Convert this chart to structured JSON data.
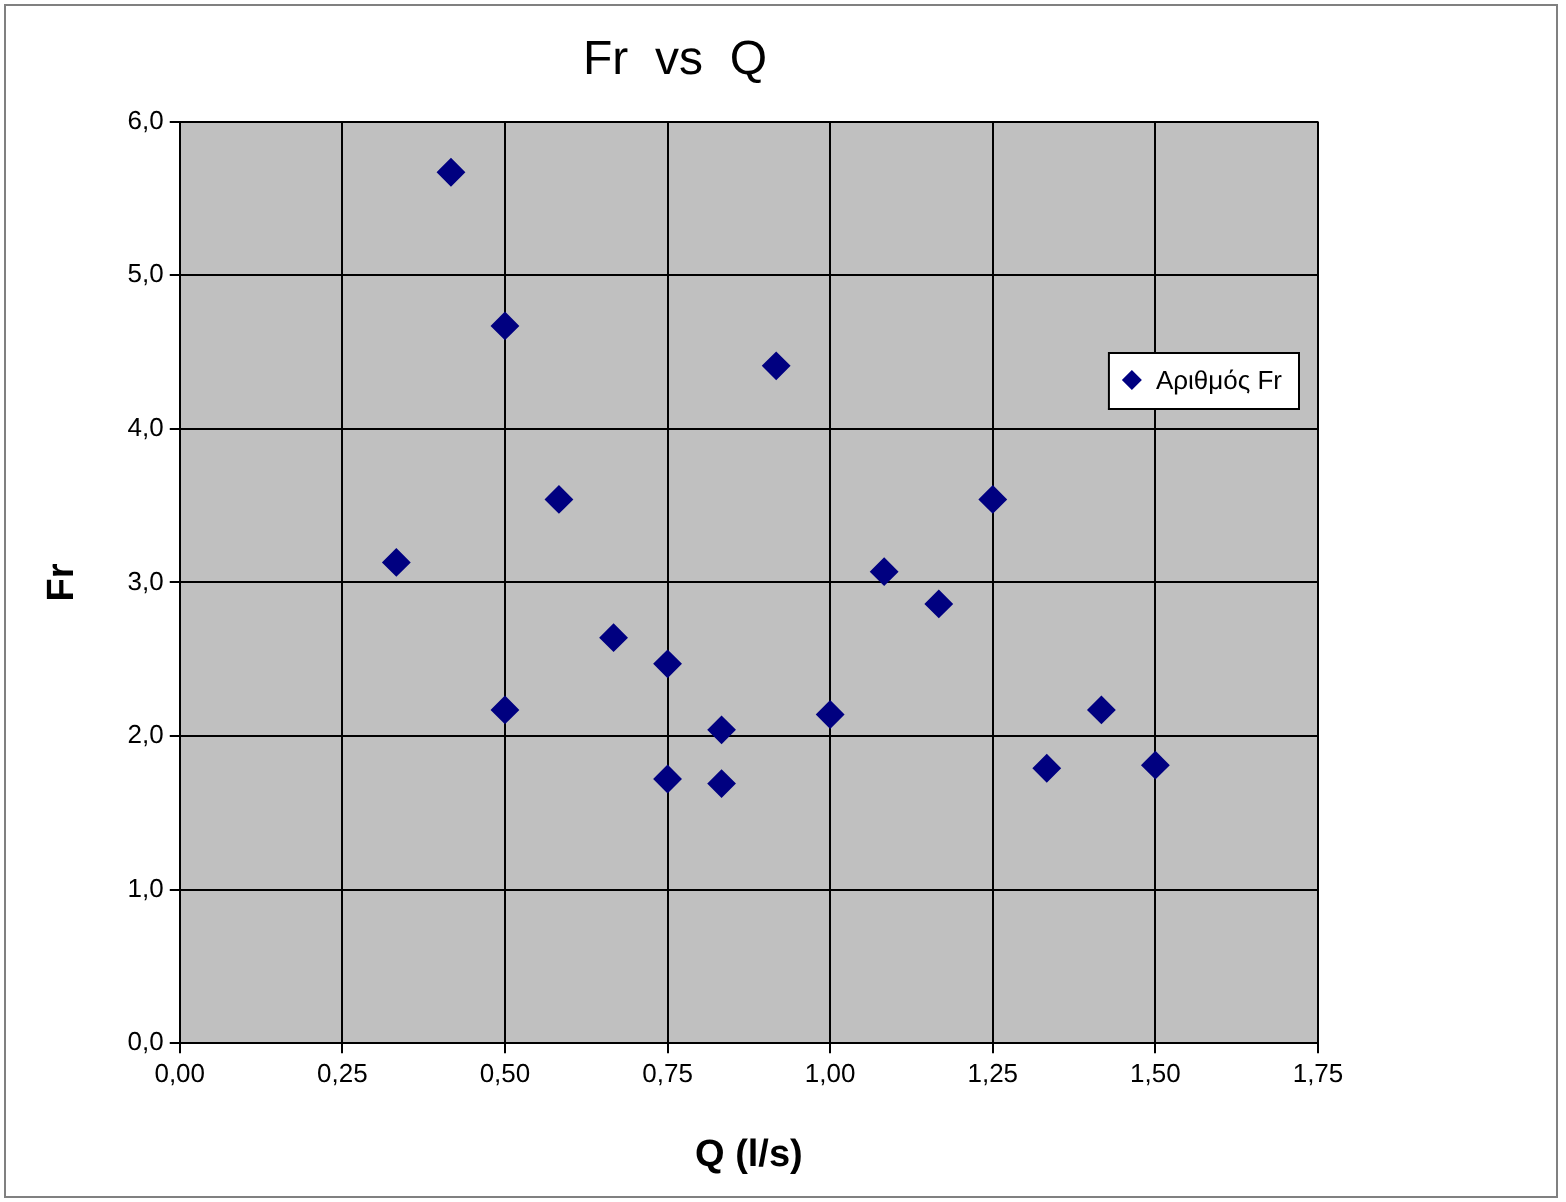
{
  "chart_data": {
    "type": "scatter",
    "title": "Fr  vs  Q",
    "xlabel": "Q (l/s)",
    "ylabel": "Fr",
    "x": [
      0.333,
      0.417,
      0.5,
      0.5,
      0.583,
      0.667,
      0.75,
      0.75,
      0.833,
      0.833,
      0.917,
      1.0,
      1.083,
      1.167,
      1.25,
      1.333,
      1.417,
      1.5
    ],
    "series": [
      {
        "name": "Αριθμός Fr",
        "color": "#000080",
        "values": [
          3.13,
          5.67,
          4.67,
          2.17,
          3.54,
          2.64,
          2.47,
          1.72,
          2.04,
          1.69,
          4.41,
          2.14,
          3.07,
          2.86,
          3.54,
          1.79,
          2.17,
          1.81
        ]
      }
    ],
    "xlim": [
      0,
      1.75
    ],
    "ylim": [
      0,
      6
    ],
    "xticks": [
      {
        "value": 0,
        "label": "0,00"
      },
      {
        "value": 0.25,
        "label": "0,25"
      },
      {
        "value": 0.5,
        "label": "0,50"
      },
      {
        "value": 0.75,
        "label": "0,75"
      },
      {
        "value": 1,
        "label": "1,00"
      },
      {
        "value": 1.25,
        "label": "1,25"
      },
      {
        "value": 1.5,
        "label": "1,50"
      },
      {
        "value": 1.75,
        "label": "1,75"
      }
    ],
    "yticks": [
      {
        "value": 0,
        "label": "0,0"
      },
      {
        "value": 1,
        "label": "1,0"
      },
      {
        "value": 2,
        "label": "2,0"
      },
      {
        "value": 3,
        "label": "3,0"
      },
      {
        "value": 4,
        "label": "4,0"
      },
      {
        "value": 5,
        "label": "5,0"
      },
      {
        "value": 6,
        "label": "6,0"
      }
    ],
    "grid": true,
    "legend": "right",
    "marker": "diamond"
  }
}
